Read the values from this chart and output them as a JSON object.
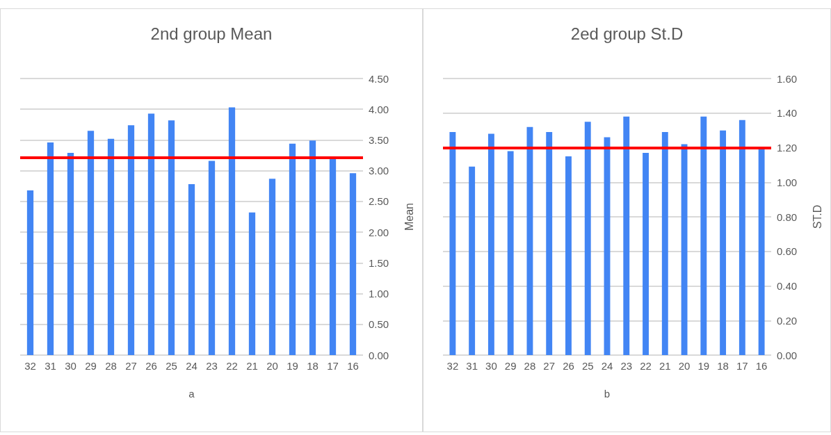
{
  "chart_data": [
    {
      "type": "bar",
      "title": "2nd group Mean",
      "xlabel": "a",
      "ylabel": "Mean",
      "categories": [
        "32",
        "31",
        "30",
        "29",
        "28",
        "27",
        "26",
        "25",
        "24",
        "23",
        "22",
        "21",
        "20",
        "19",
        "18",
        "17",
        "16"
      ],
      "values": [
        2.68,
        3.46,
        3.29,
        3.65,
        3.52,
        3.74,
        3.93,
        3.82,
        2.78,
        3.16,
        4.03,
        2.32,
        2.87,
        3.44,
        3.49,
        3.2,
        2.96
      ],
      "color": "#4285f4",
      "ylim": [
        0,
        4.5
      ],
      "yticks": [
        {
          "value": 0,
          "label": "0.00"
        },
        {
          "value": 0.5,
          "label": "0.50"
        },
        {
          "value": 1,
          "label": "1.00"
        },
        {
          "value": 1.5,
          "label": "1.50"
        },
        {
          "value": 2,
          "label": "2.00"
        },
        {
          "value": 2.5,
          "label": "2.50"
        },
        {
          "value": 3,
          "label": "3.00"
        },
        {
          "value": 3.5,
          "label": "3.50"
        },
        {
          "value": 4,
          "label": "4.00"
        },
        {
          "value": 4.5,
          "label": "4.50"
        }
      ],
      "ref_lines": [
        {
          "axis": "y",
          "value": 3.21,
          "color": "#ff0000"
        }
      ],
      "grid": "y"
    },
    {
      "type": "bar",
      "title": "2ed group St.D",
      "xlabel": "b",
      "ylabel": "ST.D",
      "categories": [
        "32",
        "31",
        "30",
        "29",
        "28",
        "27",
        "26",
        "25",
        "24",
        "23",
        "22",
        "21",
        "20",
        "19",
        "18",
        "17",
        "16"
      ],
      "values": [
        1.29,
        1.09,
        1.28,
        1.18,
        1.32,
        1.29,
        1.15,
        1.35,
        1.26,
        1.38,
        1.17,
        1.29,
        1.22,
        1.38,
        1.3,
        1.36,
        1.19
      ],
      "color": "#4285f4",
      "ylim": [
        0,
        1.6
      ],
      "yticks": [
        {
          "value": 0,
          "label": "0.00"
        },
        {
          "value": 0.2,
          "label": "0.20"
        },
        {
          "value": 0.4,
          "label": "0.40"
        },
        {
          "value": 0.6,
          "label": "0.60"
        },
        {
          "value": 0.8,
          "label": "0.80"
        },
        {
          "value": 1,
          "label": "1.00"
        },
        {
          "value": 1.2,
          "label": "1.20"
        },
        {
          "value": 1.4,
          "label": "1.40"
        },
        {
          "value": 1.6,
          "label": "1.60"
        }
      ],
      "ref_lines": [
        {
          "axis": "y",
          "value": 1.2,
          "color": "#ff0000"
        }
      ],
      "grid": "y"
    }
  ]
}
